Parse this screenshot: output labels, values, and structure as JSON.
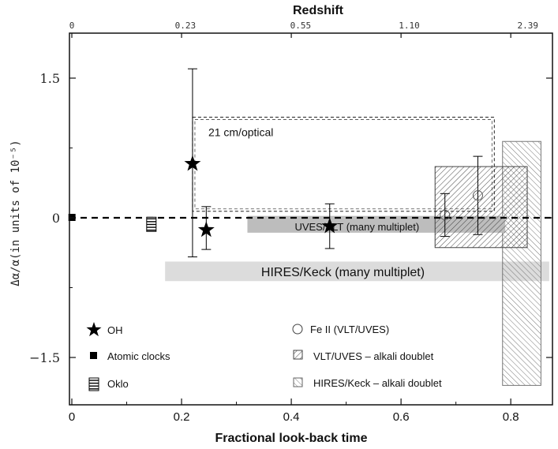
{
  "chart_data": {
    "type": "scatter",
    "title": "",
    "xlabel": "Fractional look-back time",
    "ylabel": "Δα/α(in units of 10⁻⁵)",
    "top_axis_label": "Redshift",
    "xlim": [
      0,
      0.876
    ],
    "ylim": [
      -2.0,
      2.2
    ],
    "x_ticks": [
      0,
      0.2,
      0.4,
      0.6,
      0.8
    ],
    "x_tick_labels": [
      "0",
      "0.2",
      "0.4",
      "0.6",
      "0.8"
    ],
    "y_ticks": [
      1.5,
      0,
      -1.5
    ],
    "y_tick_labels": [
      "1.5",
      "0",
      "−1.5"
    ],
    "top_ticks": [
      {
        "x": 0.0,
        "label": "0"
      },
      {
        "x": 0.207,
        "label": "0.23"
      },
      {
        "x": 0.417,
        "label": "0.55"
      },
      {
        "x": 0.615,
        "label": "1.10"
      },
      {
        "x": 0.831,
        "label": "2.39"
      }
    ],
    "reference_line_y": 0,
    "series": [
      {
        "name": "OH",
        "marker": "star",
        "points": [
          {
            "x": 0.22,
            "y": 0.58,
            "lo": -0.42,
            "hi": 1.6
          },
          {
            "x": 0.245,
            "y": -0.13,
            "lo": -0.34,
            "hi": 0.12
          },
          {
            "x": 0.47,
            "y": -0.09,
            "lo": -0.33,
            "hi": 0.15
          }
        ]
      },
      {
        "name": "Atomic clocks",
        "marker": "filled-square",
        "points": [
          {
            "x": 0.001,
            "y": 0.0
          }
        ]
      },
      {
        "name": "Oklo",
        "marker": "striped-square",
        "points": [
          {
            "x": 0.145,
            "y": -0.07
          }
        ]
      },
      {
        "name": "Fe II (VLT/UVES)",
        "marker": "open-circle",
        "points": [
          {
            "x": 0.68,
            "y": 0.03,
            "lo": -0.2,
            "hi": 0.26
          },
          {
            "x": 0.74,
            "y": 0.24,
            "lo": -0.18,
            "hi": 0.66
          }
        ]
      }
    ],
    "regions": [
      {
        "name": "21 cm/optical",
        "style": "dashed-box",
        "x": [
          0.22,
          0.77
        ],
        "y": [
          0.07,
          1.08
        ],
        "label_pos": "top-left"
      },
      {
        "name": "UVES/VLT  (many multiplet)",
        "style": "grey-band",
        "x": [
          0.32,
          0.79
        ],
        "y": [
          -0.16,
          0.02
        ]
      },
      {
        "name": "HIRES/Keck (many multiplet)",
        "style": "light-grey-band",
        "x": [
          0.17,
          0.87
        ],
        "y": [
          -0.68,
          -0.47
        ]
      },
      {
        "name": "VLT/UVES – alkali doublet",
        "style": "hatch-forward",
        "x": [
          0.662,
          0.83
        ],
        "y": [
          -0.32,
          0.55
        ]
      },
      {
        "name": "HIRES/Keck – alkali doublet",
        "style": "hatch-back",
        "x": [
          0.785,
          0.855
        ],
        "y": [
          -1.8,
          0.82
        ]
      }
    ],
    "grid": false,
    "legend_position": "bottom-left"
  }
}
